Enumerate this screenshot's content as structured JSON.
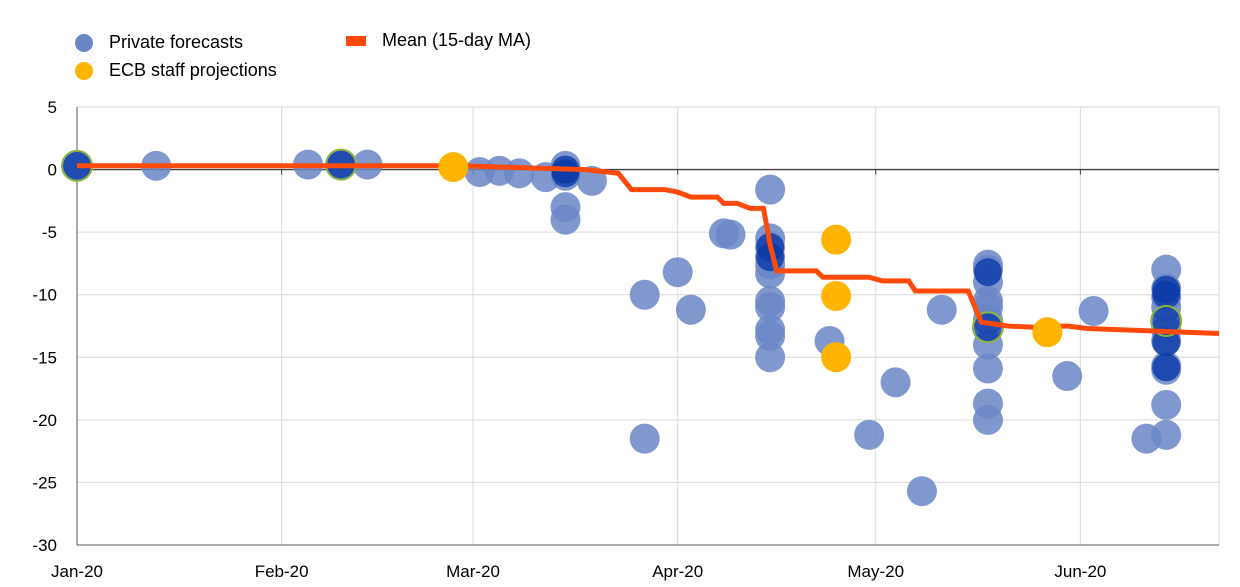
{
  "chart_data": {
    "type": "scatter",
    "title": "",
    "xlabel": "",
    "ylabel": "",
    "x_ticks": [
      "Jan-20",
      "Feb-20",
      "Mar-20",
      "Apr-20",
      "May-20",
      "Jun-20"
    ],
    "x_range": [
      "2020-01-01",
      "2020-06-22"
    ],
    "ylim": [
      -30,
      5
    ],
    "y_ticks": [
      5,
      0,
      -5,
      -10,
      -15,
      -20,
      -25,
      -30
    ],
    "grid": true,
    "legend_position": "top-left",
    "colors": {
      "private": "#6b86c6",
      "private_dark": "#0a3aa8",
      "ecb": "#ffb400",
      "mean": "#ff4a0a",
      "highlight_outline": "#8db33f",
      "grid": "#d9d9d9",
      "zero_line": "#404040"
    },
    "legend": {
      "private": "Private forecasts",
      "ecb": "ECB staff projections",
      "mean": "Mean (15-day MA)"
    },
    "series": [
      {
        "name": "Private forecasts",
        "points": [
          [
            "2020-01-01",
            0.3
          ],
          [
            "2020-01-13",
            0.3
          ],
          [
            "2020-02-05",
            0.4
          ],
          [
            "2020-02-10",
            0.4
          ],
          [
            "2020-02-14",
            0.4
          ],
          [
            "2020-03-02",
            -0.2
          ],
          [
            "2020-03-05",
            -0.1
          ],
          [
            "2020-03-08",
            -0.3
          ],
          [
            "2020-03-12",
            -0.6
          ],
          [
            "2020-03-15",
            0.3
          ],
          [
            "2020-03-15",
            -0.5
          ],
          [
            "2020-03-15",
            -3.0
          ],
          [
            "2020-03-15",
            -4.0
          ],
          [
            "2020-03-19",
            -0.9
          ],
          [
            "2020-03-27",
            -10.0
          ],
          [
            "2020-03-27",
            -21.5
          ],
          [
            "2020-04-01",
            -8.2
          ],
          [
            "2020-04-03",
            -11.2
          ],
          [
            "2020-04-08",
            -5.1
          ],
          [
            "2020-04-09",
            -5.2
          ],
          [
            "2020-04-15",
            -1.6
          ],
          [
            "2020-04-15",
            -5.5
          ],
          [
            "2020-04-15",
            -6.2
          ],
          [
            "2020-04-15",
            -7.0
          ],
          [
            "2020-04-15",
            -7.6
          ],
          [
            "2020-04-15",
            -8.3
          ],
          [
            "2020-04-15",
            -10.5
          ],
          [
            "2020-04-15",
            -11.0
          ],
          [
            "2020-04-15",
            -12.8
          ],
          [
            "2020-04-15",
            -13.3
          ],
          [
            "2020-04-15",
            -15.0
          ],
          [
            "2020-04-24",
            -13.7
          ],
          [
            "2020-04-30",
            -21.2
          ],
          [
            "2020-05-04",
            -17.0
          ],
          [
            "2020-05-08",
            -25.7
          ],
          [
            "2020-05-11",
            -11.2
          ],
          [
            "2020-05-18",
            -7.6
          ],
          [
            "2020-05-18",
            -8.0
          ],
          [
            "2020-05-18",
            -9.0
          ],
          [
            "2020-05-18",
            -10.5
          ],
          [
            "2020-05-18",
            -11.0
          ],
          [
            "2020-05-18",
            -12.0
          ],
          [
            "2020-05-18",
            -14.0
          ],
          [
            "2020-05-18",
            -15.9
          ],
          [
            "2020-05-18",
            -18.7
          ],
          [
            "2020-05-18",
            -20.0
          ],
          [
            "2020-05-30",
            -16.5
          ],
          [
            "2020-06-03",
            -11.3
          ],
          [
            "2020-06-11",
            -21.5
          ],
          [
            "2020-06-14",
            -8.0
          ],
          [
            "2020-06-14",
            -9.5
          ],
          [
            "2020-06-14",
            -10.2
          ],
          [
            "2020-06-14",
            -11.0
          ],
          [
            "2020-06-14",
            -12.8
          ],
          [
            "2020-06-14",
            -13.7
          ],
          [
            "2020-06-14",
            -15.7
          ],
          [
            "2020-06-14",
            -16.0
          ],
          [
            "2020-06-14",
            -18.8
          ],
          [
            "2020-06-14",
            -21.2
          ]
        ]
      },
      {
        "name": "ECB staff projections",
        "points": [
          [
            "2020-02-27",
            0.2
          ],
          [
            "2020-04-25",
            -5.6
          ],
          [
            "2020-04-25",
            -10.1
          ],
          [
            "2020-04-25",
            -15.0
          ],
          [
            "2020-05-27",
            -13.0
          ]
        ]
      },
      {
        "name": "Mean (15-day MA)",
        "points": [
          [
            "2020-01-01",
            0.3
          ],
          [
            "2020-02-28",
            0.3
          ],
          [
            "2020-03-18",
            0.0
          ],
          [
            "2020-03-23",
            -0.3
          ],
          [
            "2020-03-25",
            -1.6
          ],
          [
            "2020-03-30",
            -1.6
          ],
          [
            "2020-04-01",
            -1.8
          ],
          [
            "2020-04-03",
            -2.2
          ],
          [
            "2020-04-07",
            -2.2
          ],
          [
            "2020-04-08",
            -2.7
          ],
          [
            "2020-04-10",
            -2.7
          ],
          [
            "2020-04-12",
            -3.1
          ],
          [
            "2020-04-14",
            -3.1
          ],
          [
            "2020-04-15",
            -6.0
          ],
          [
            "2020-04-16",
            -8.1
          ],
          [
            "2020-04-22",
            -8.1
          ],
          [
            "2020-04-23",
            -8.6
          ],
          [
            "2020-04-30",
            -8.6
          ],
          [
            "2020-05-02",
            -8.9
          ],
          [
            "2020-05-06",
            -8.9
          ],
          [
            "2020-05-07",
            -9.7
          ],
          [
            "2020-05-15",
            -9.7
          ],
          [
            "2020-05-17",
            -12.2
          ],
          [
            "2020-05-21",
            -12.5
          ],
          [
            "2020-05-25",
            -12.6
          ],
          [
            "2020-05-30",
            -12.5
          ],
          [
            "2020-06-02",
            -12.7
          ],
          [
            "2020-06-22",
            -13.1
          ]
        ]
      }
    ],
    "highlighted": [
      [
        "2020-01-01",
        0.3
      ],
      [
        "2020-02-10",
        0.4
      ],
      [
        "2020-05-18",
        -12.6
      ],
      [
        "2020-06-14",
        -12.1
      ]
    ],
    "dark_markers": [
      [
        "2020-01-01",
        0.3
      ],
      [
        "2020-02-10",
        0.4
      ],
      [
        "2020-03-15",
        0.0
      ],
      [
        "2020-03-15",
        -0.3
      ],
      [
        "2020-04-15",
        -6.2
      ],
      [
        "2020-04-15",
        -7.0
      ],
      [
        "2020-05-18",
        -8.2
      ],
      [
        "2020-05-18",
        -12.6
      ],
      [
        "2020-06-14",
        -9.6
      ],
      [
        "2020-06-14",
        -10.0
      ],
      [
        "2020-06-14",
        -12.1
      ],
      [
        "2020-06-14",
        -13.8
      ],
      [
        "2020-06-14",
        -15.8
      ]
    ]
  }
}
